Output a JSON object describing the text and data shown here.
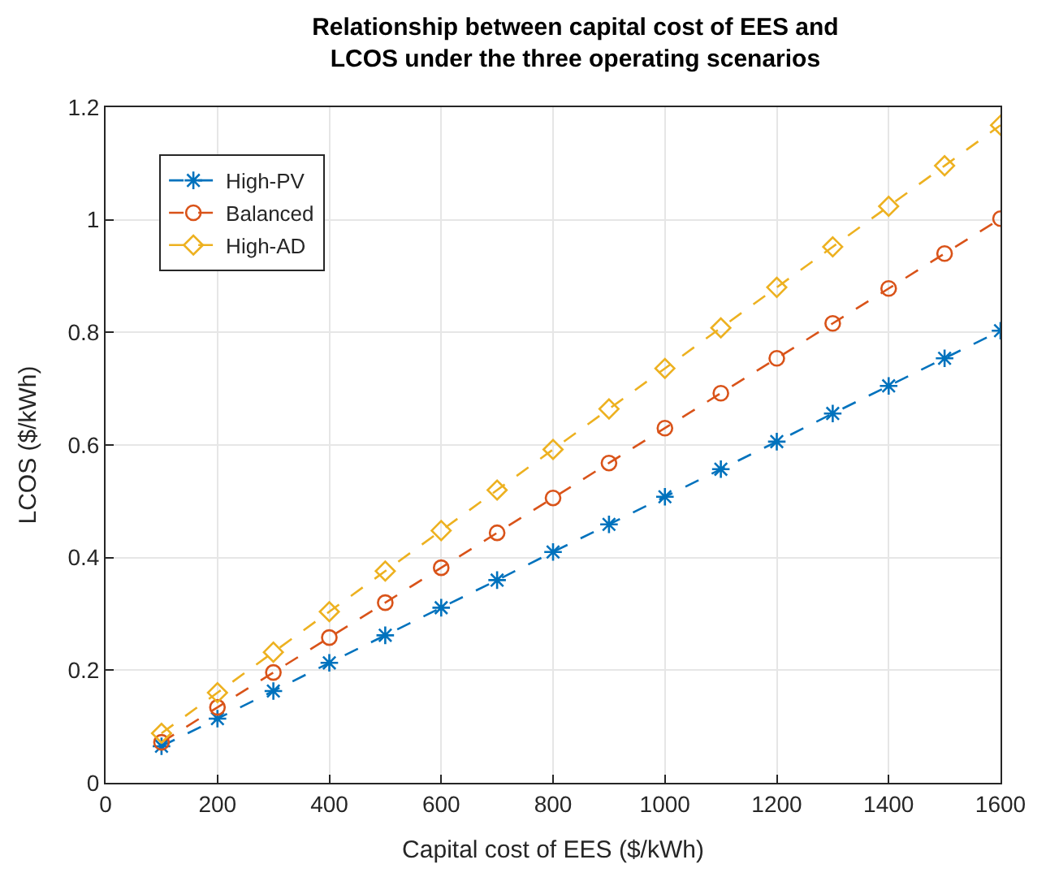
{
  "chart_data": {
    "type": "line",
    "title": "Relationship between capital cost of EES and\nLCOS under the three operating scenarios",
    "xlabel": "Capital cost of EES ($/kWh)",
    "ylabel": "LCOS ($/kWh)",
    "x": [
      100,
      200,
      300,
      400,
      500,
      600,
      700,
      800,
      900,
      1000,
      1100,
      1200,
      1300,
      1400,
      1500,
      1600
    ],
    "series": [
      {
        "name": "High-PV",
        "color": "#0072bd",
        "marker": "cross",
        "values": [
          0.065,
          0.114,
          0.163,
          0.213,
          0.262,
          0.311,
          0.36,
          0.41,
          0.459,
          0.508,
          0.557,
          0.606,
          0.656,
          0.705,
          0.754,
          0.803
        ]
      },
      {
        "name": "Balanced",
        "color": "#d95319",
        "marker": "circle",
        "values": [
          0.072,
          0.134,
          0.196,
          0.258,
          0.32,
          0.382,
          0.444,
          0.506,
          0.568,
          0.63,
          0.692,
          0.754,
          0.816,
          0.878,
          0.94,
          1.002
        ]
      },
      {
        "name": "High-AD",
        "color": "#edb120",
        "marker": "diamond",
        "values": [
          0.088,
          0.16,
          0.232,
          0.304,
          0.376,
          0.448,
          0.52,
          0.592,
          0.664,
          0.736,
          0.808,
          0.88,
          0.952,
          1.024,
          1.096,
          1.168
        ]
      }
    ],
    "line_style": "dashed",
    "xlim": [
      0,
      1600
    ],
    "xticks": [
      0,
      200,
      400,
      600,
      800,
      1000,
      1200,
      1400,
      1600
    ],
    "ylim": [
      0,
      1.2
    ],
    "yticks": [
      0,
      0.2,
      0.4,
      0.6,
      0.8,
      1,
      1.2
    ],
    "grid": true,
    "legend": "top left"
  }
}
